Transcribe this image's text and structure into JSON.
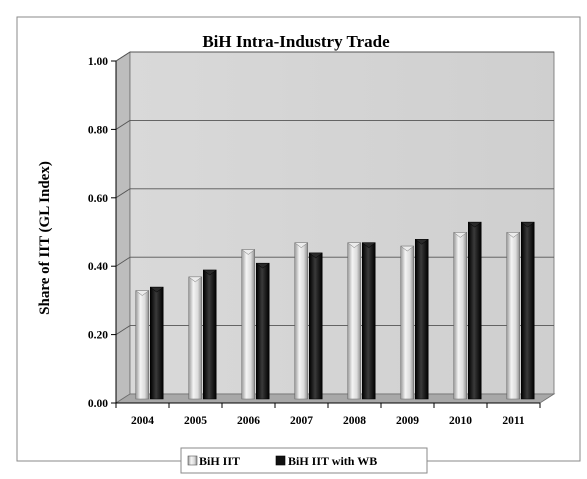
{
  "chart_data": {
    "type": "bar",
    "title": "BiH Intra-Industry Trade",
    "xlabel": "",
    "ylabel": "Share of IIT (GL Index)",
    "categories": [
      "2004",
      "2005",
      "2006",
      "2007",
      "2008",
      "2009",
      "2010",
      "2011"
    ],
    "series": [
      {
        "name": "BiH IIT",
        "values": [
          0.32,
          0.36,
          0.44,
          0.46,
          0.46,
          0.45,
          0.49,
          0.49
        ],
        "color": "#d9d9d9"
      },
      {
        "name": "BiH IIT with WB",
        "values": [
          0.33,
          0.38,
          0.4,
          0.43,
          0.46,
          0.47,
          0.52,
          0.52
        ],
        "color": "#1a1a1a"
      }
    ],
    "ylim": [
      0,
      1
    ],
    "yticks": [
      "0.00",
      "0.20",
      "0.40",
      "0.60",
      "0.80",
      "1.00"
    ],
    "grid": true,
    "legend_position": "bottom",
    "plot_background": "#d4d4d4"
  }
}
